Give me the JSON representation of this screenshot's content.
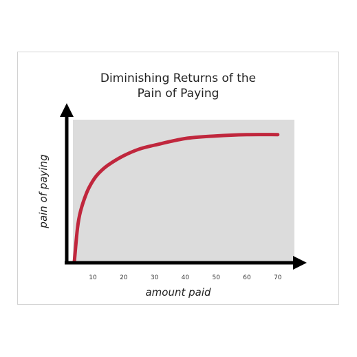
{
  "chart_data": {
    "type": "line",
    "title_line1": "Diminishing Returns of the",
    "title_line2": "Pain of Paying",
    "xlabel": "amount paid",
    "ylabel": "pain of paying",
    "x_ticks": [
      "10",
      "20",
      "30",
      "40",
      "50",
      "60",
      "70"
    ],
    "xlim": [
      0,
      75
    ],
    "ylim": [
      0,
      100
    ],
    "grid": false,
    "series": [
      {
        "color": "#c0273d",
        "x": [
          4,
          5,
          6,
          8,
          10,
          12,
          15,
          20,
          25,
          30,
          40,
          50,
          60,
          70
        ],
        "y": [
          0,
          25,
          38,
          52,
          61,
          67,
          73,
          80,
          85,
          88,
          93,
          95,
          96,
          96
        ]
      }
    ],
    "plot_background": "#dcdcdc",
    "axis_color": "#000000"
  }
}
